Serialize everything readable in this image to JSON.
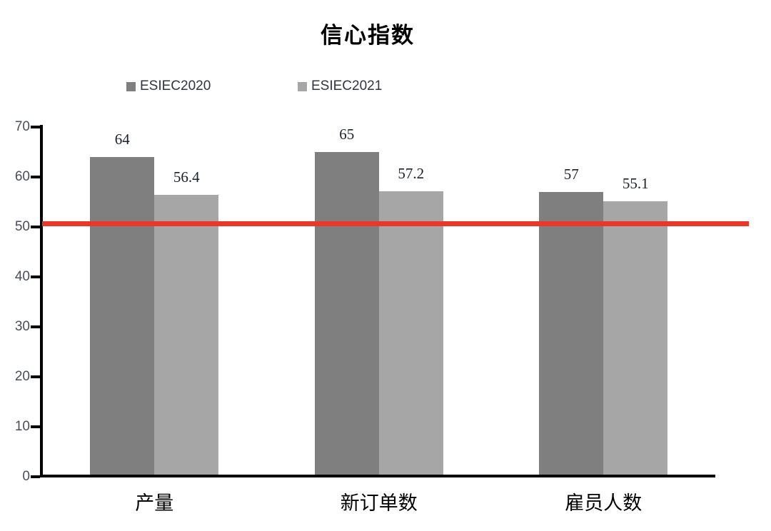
{
  "chart_data": {
    "type": "bar",
    "title": "信心指数",
    "categories": [
      "产量",
      "新订单数",
      "雇员人数"
    ],
    "series": [
      {
        "name": "ESIEC2020",
        "color": "#7F7F7F",
        "values": [
          64,
          65,
          57
        ]
      },
      {
        "name": "ESIEC2021",
        "color": "#A6A6A6",
        "values": [
          56.4,
          57.2,
          55.1
        ]
      }
    ],
    "y_axis": {
      "min": 0,
      "max": 70,
      "step": 10,
      "ticks": [
        "0",
        "10",
        "20",
        "30",
        "40",
        "50",
        "60",
        "70"
      ]
    },
    "reference_line": {
      "value": 50.6,
      "color": "#E8382A"
    },
    "legend_position": "top",
    "grid": false,
    "xlabel": "",
    "ylabel": ""
  }
}
